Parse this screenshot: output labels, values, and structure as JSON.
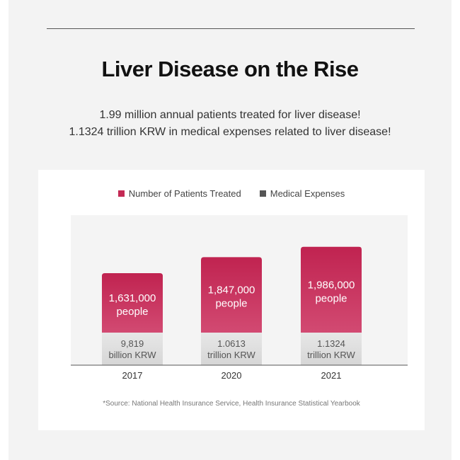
{
  "title": "Liver Disease on the Rise",
  "subtitle_lines": [
    "1.99 million annual patients treated for liver disease!",
    "1.1324 trillion KRW in medical expenses related to liver disease!"
  ],
  "source": "*Source: National Health Insurance Service, Health Insurance Statistical Yearbook",
  "colors": {
    "patients": "#c42a55",
    "expenses": "#555555"
  },
  "chart_data": {
    "type": "bar",
    "stacked": true,
    "categories": [
      "2017",
      "2020",
      "2021"
    ],
    "legend_position": "top-center",
    "series": [
      {
        "name": "Number of Patients Treated",
        "values": [
          1631000,
          1847000,
          1986000
        ],
        "labels": [
          [
            "1,631,000",
            "people"
          ],
          [
            "1,847,000",
            "people"
          ],
          [
            "1,986,000",
            "people"
          ]
        ]
      },
      {
        "name": "Medical Expenses",
        "values": [
          0.9819,
          1.0613,
          1.1324
        ],
        "labels": [
          [
            "9,819",
            "billion KRW"
          ],
          [
            "1.0613",
            "trillion KRW"
          ],
          [
            "1.1324",
            "trillion KRW"
          ]
        ]
      }
    ]
  }
}
